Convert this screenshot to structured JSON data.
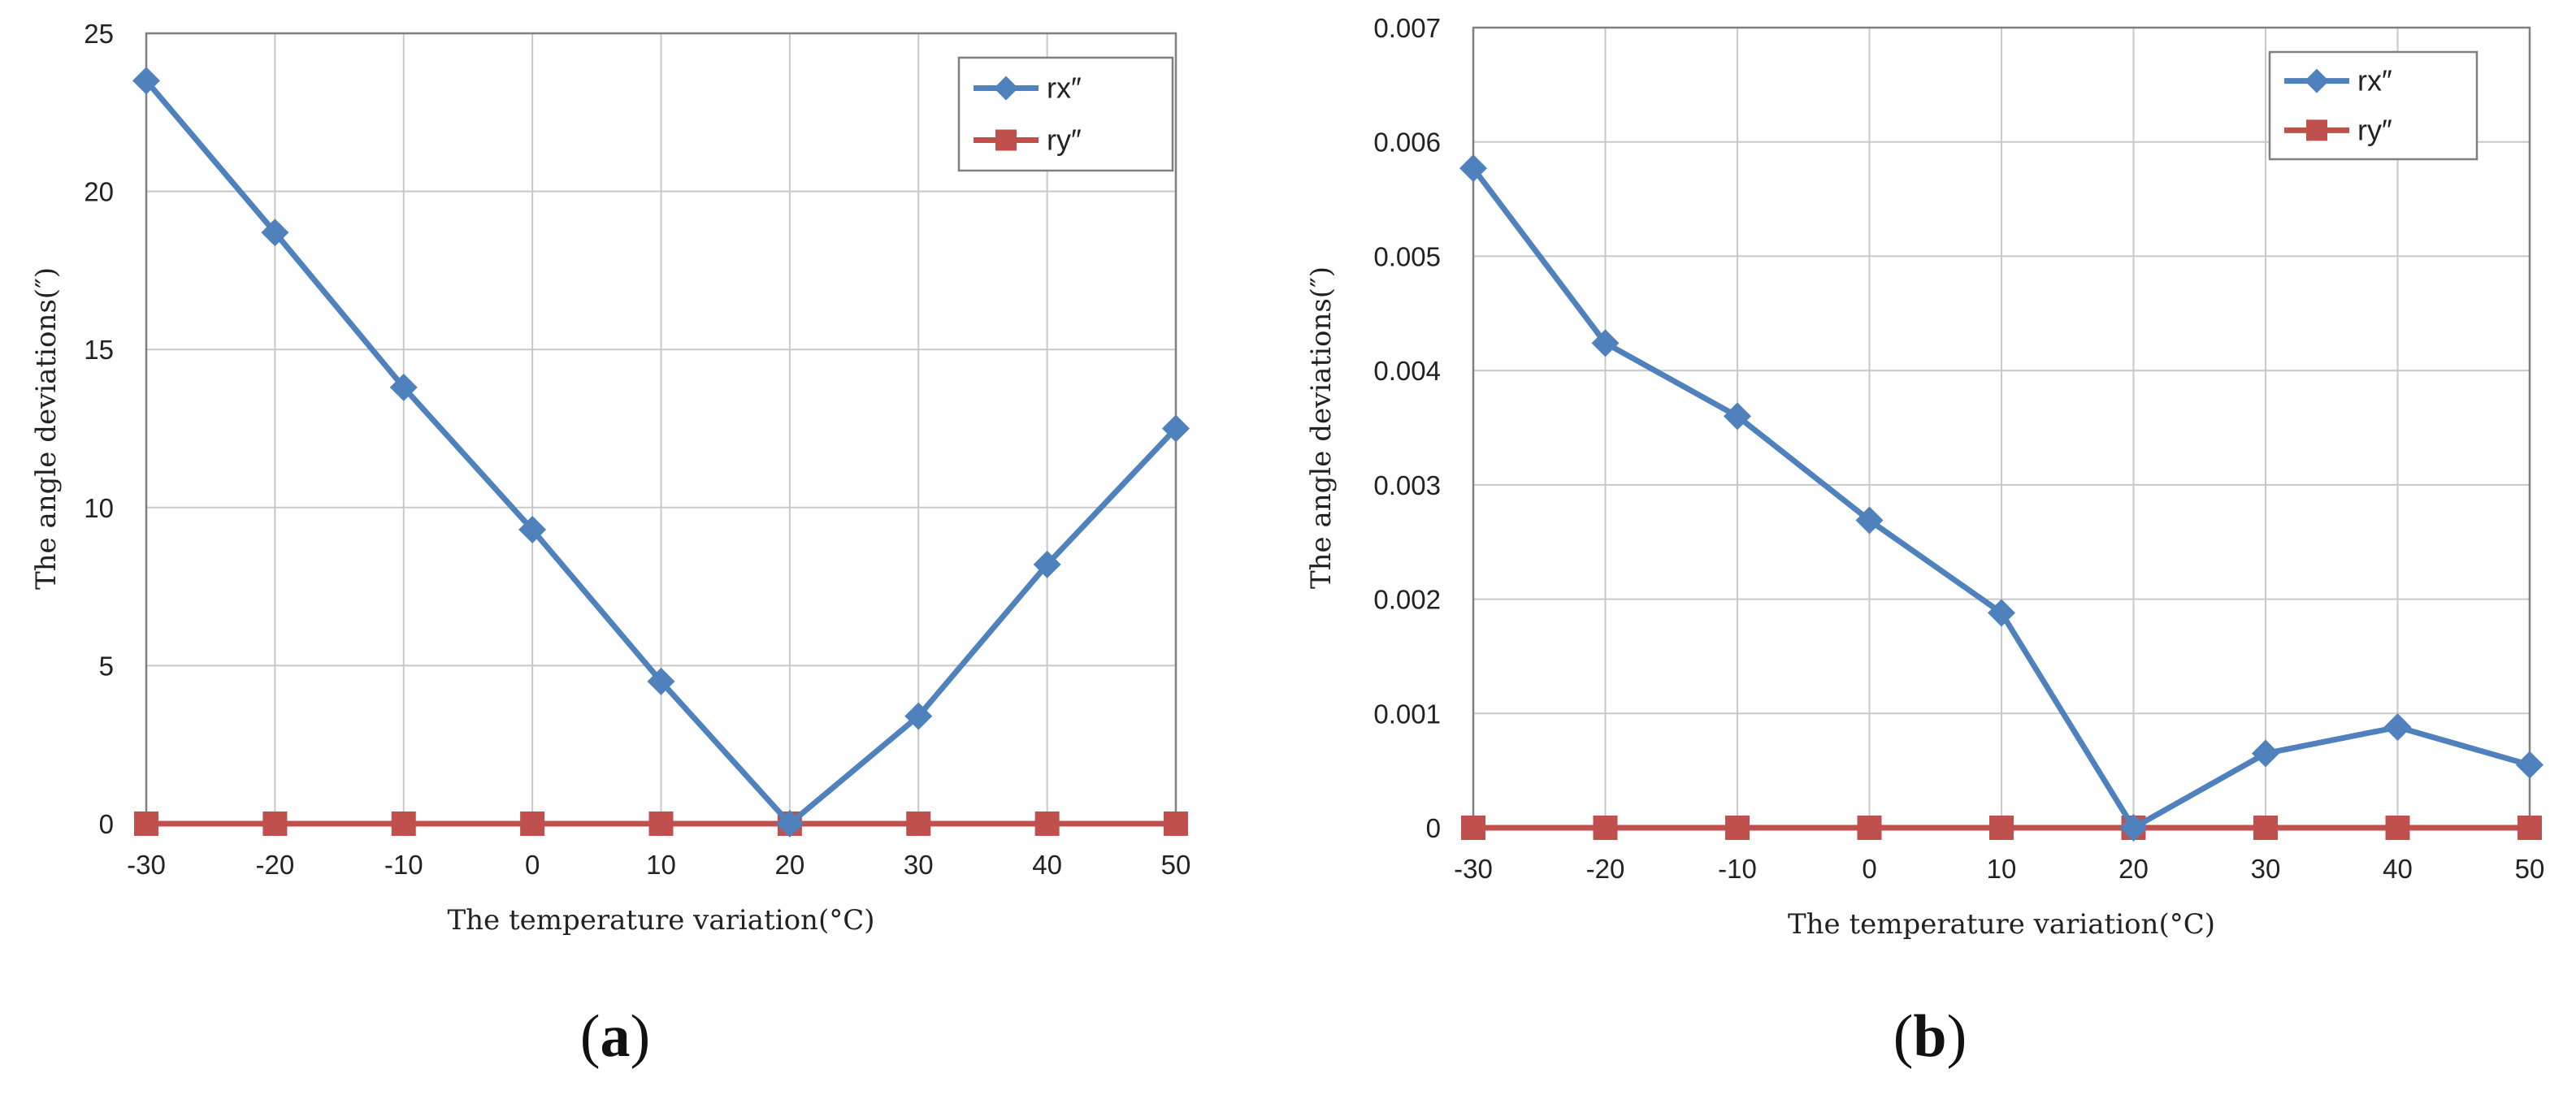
{
  "colors": {
    "series_rx": "#4F81BD",
    "series_ry": "#C0504D",
    "grid": "#C8C8C8",
    "axis": "#7F7F7F"
  },
  "chart_data": [
    {
      "type": "line",
      "panel_label": "a",
      "xlabel": "The temperature variation(°C)",
      "ylabel": "The angle deviations(″)",
      "x": [
        -30,
        -20,
        -10,
        0,
        10,
        20,
        30,
        40,
        50
      ],
      "xlim": [
        -30,
        50
      ],
      "ylim": [
        0,
        25
      ],
      "yticks": [
        0,
        5,
        10,
        15,
        20,
        25
      ],
      "ytick_labels": [
        "0",
        "5",
        "10",
        "15",
        "20",
        "25"
      ],
      "grid": true,
      "legend_position": "top-right",
      "series": [
        {
          "name": "rx″",
          "marker": "diamond",
          "values": [
            23.5,
            18.7,
            13.8,
            9.3,
            4.5,
            0,
            3.4,
            8.2,
            12.5
          ]
        },
        {
          "name": "ry″",
          "marker": "square",
          "values": [
            0,
            0,
            0,
            0,
            0,
            0,
            0,
            0,
            0
          ]
        }
      ]
    },
    {
      "type": "line",
      "panel_label": "b",
      "xlabel": "The temperature variation(°C)",
      "ylabel": "The angle deviations(″)",
      "x": [
        -30,
        -20,
        -10,
        0,
        10,
        20,
        30,
        40,
        50
      ],
      "xlim": [
        -30,
        50
      ],
      "ylim": [
        0,
        0.007
      ],
      "yticks": [
        0,
        0.001,
        0.002,
        0.003,
        0.004,
        0.005,
        0.006,
        0.007
      ],
      "ytick_labels": [
        "0",
        "0.001",
        "0.002",
        "0.003",
        "0.004",
        "0.005",
        "0.006",
        "0.007"
      ],
      "grid": true,
      "legend_position": "top-right",
      "series": [
        {
          "name": "rx″",
          "marker": "diamond",
          "values": [
            0.00577,
            0.00424,
            0.0036,
            0.00269,
            0.00188,
            0,
            0.00065,
            0.00088,
            0.00055
          ]
        },
        {
          "name": "ry″",
          "marker": "square",
          "values": [
            0,
            0,
            0,
            0,
            0,
            0,
            0,
            0,
            0
          ]
        }
      ]
    }
  ]
}
